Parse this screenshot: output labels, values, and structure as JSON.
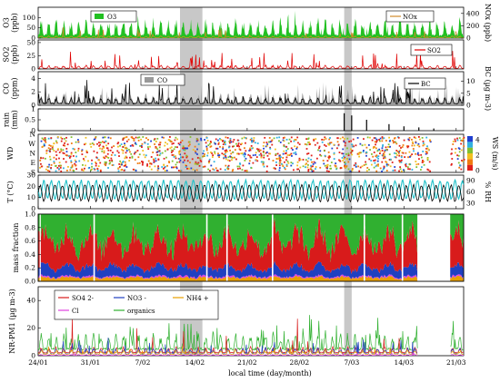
{
  "chart_data": {
    "type": "line",
    "xlabel": "local time (day/month)",
    "x_ticks": [
      "24/01",
      "31/01",
      "7/02",
      "14/02",
      "21/02",
      "28/02",
      "7/03",
      "14/03",
      "21/03"
    ],
    "x_range": [
      "2018-01-24",
      "2018-03-22"
    ],
    "event_bands": [
      {
        "start": "2018-02-12",
        "end": "2018-02-14"
      },
      {
        "start": "2018-03-06",
        "end": "2018-03-06"
      }
    ],
    "panels": [
      {
        "id": "o3",
        "ylabel_lines": [
          "O3",
          "(ppb)"
        ],
        "ylim": [
          0,
          150
        ],
        "yticks": [
          "0",
          "50",
          "100"
        ],
        "y2label": "NOx (ppb)",
        "y2lim": [
          0,
          500
        ],
        "y2ticks": [
          "0",
          "200",
          "400"
        ],
        "legend": [
          {
            "name": "O3",
            "color": "#22c022",
            "kind": "area"
          },
          {
            "name": "NOx",
            "color": "#d08a2a",
            "kind": "line"
          }
        ]
      },
      {
        "id": "so2",
        "ylabel_lines": [
          "SO2",
          "(ppb)"
        ],
        "ylim": [
          0,
          55
        ],
        "yticks": [
          "0",
          "25",
          "50"
        ],
        "legend": [
          {
            "name": "SO2",
            "color": "#e00000",
            "kind": "line"
          }
        ]
      },
      {
        "id": "co",
        "ylabel_lines": [
          "CO",
          "(ppm)"
        ],
        "ylim": [
          0,
          5
        ],
        "yticks": [
          "0",
          "2",
          "4"
        ],
        "y2label": "BC (µg m-3)",
        "y2lim": [
          0,
          14
        ],
        "y2ticks": [
          "0",
          "5",
          "10"
        ],
        "legend": [
          {
            "name": "CO",
            "color": "#999999",
            "kind": "area"
          },
          {
            "name": "BC",
            "color": "#000000",
            "kind": "line"
          }
        ]
      },
      {
        "id": "rain",
        "ylabel_lines": [
          "rain",
          "(mm)"
        ],
        "ylim": [
          0,
          1
        ],
        "yticks": [
          "0",
          "0.5",
          "1"
        ]
      },
      {
        "id": "wd",
        "ylabel_lines": [
          "WD"
        ],
        "yticks": [
          "S",
          "E",
          "N",
          "W",
          "N"
        ],
        "colorbar_label": "WS (m/s)",
        "colorbar_ticks": [
          "0",
          "2",
          "4"
        ]
      },
      {
        "id": "t",
        "ylabel_lines": [
          "T (°C)"
        ],
        "ylim": [
          0,
          30
        ],
        "yticks": [
          "0",
          "10",
          "20",
          "30"
        ],
        "y2label": "% RH",
        "y2ticks": [
          "30",
          "60",
          "90"
        ]
      },
      {
        "id": "mf",
        "ylabel_lines": [
          "mass fraction"
        ],
        "ylim": [
          0,
          1
        ],
        "yticks": [
          "0.0",
          "0.2",
          "0.4",
          "0.6",
          "0.8",
          "1.0"
        ]
      },
      {
        "id": "pm",
        "ylabel_lines": [
          "NR-PM1 (µg m-3)"
        ],
        "ylim": [
          0,
          50
        ],
        "yticks": [
          "0",
          "20",
          "40"
        ],
        "legend": [
          {
            "name": "SO4 2-",
            "color": "#d81b1b",
            "kind": "line"
          },
          {
            "name": "NO3 -",
            "color": "#2040c0",
            "kind": "line"
          },
          {
            "name": "NH4 +",
            "color": "#e8a000",
            "kind": "line"
          },
          {
            "name": "Cl",
            "color": "#e040e0",
            "kind": "line"
          },
          {
            "name": "organics",
            "color": "#30b030",
            "kind": "line"
          }
        ]
      }
    ]
  }
}
